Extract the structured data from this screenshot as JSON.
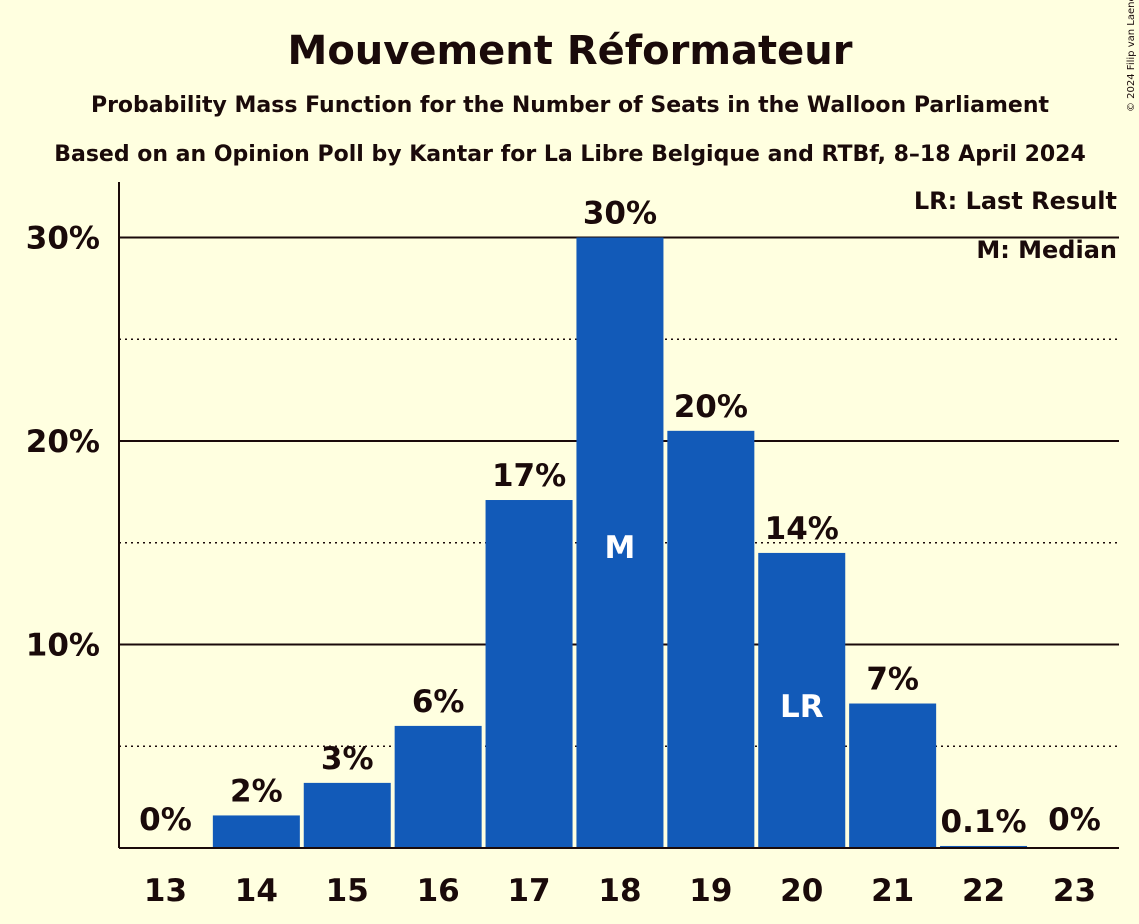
{
  "copyright": "© 2024 Filip van Laenen",
  "chart_data": {
    "type": "bar",
    "title": "Mouvement Réformateur",
    "subtitle": "Probability Mass Function for the Number of Seats in the Walloon Parliament",
    "subtitle2": "Based on an Opinion Poll by Kantar for La Libre Belgique and RTBf, 8–18 April 2024",
    "categories": [
      "13",
      "14",
      "15",
      "16",
      "17",
      "18",
      "19",
      "20",
      "21",
      "22",
      "23"
    ],
    "values": [
      0,
      1.6,
      3.2,
      6.0,
      17.1,
      30.0,
      20.5,
      14.5,
      7.1,
      0.1,
      0
    ],
    "data_labels": [
      "0%",
      "2%",
      "3%",
      "6%",
      "17%",
      "30%",
      "20%",
      "14%",
      "7%",
      "0.1%",
      "0%"
    ],
    "y_ticks": [
      {
        "value": 10,
        "label": "10%"
      },
      {
        "value": 20,
        "label": "20%"
      },
      {
        "value": 30,
        "label": "30%"
      }
    ],
    "dotted_gridlines": [
      5,
      15,
      25
    ],
    "ylim": [
      0,
      32.5
    ],
    "median_category": "18",
    "median_marker": "M",
    "last_result_category": "20",
    "last_result_marker": "LR",
    "legend": [
      "LR: Last Result",
      "M: Median"
    ],
    "legend_position": "top-right",
    "bar_color": "#125ab8",
    "background_color": "#ffffe0"
  }
}
